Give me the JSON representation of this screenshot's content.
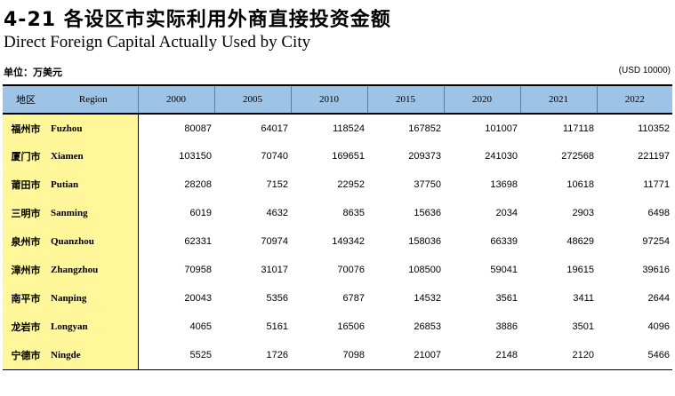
{
  "header": {
    "title_cn": "4-21 各设区市实际利用外商直接投资金额",
    "title_en": "Direct Foreign Capital Actually Used by City",
    "unit_cn": "单位：万美元",
    "unit_en": "(USD 10000)"
  },
  "table": {
    "col_region_cn": "地区",
    "col_region_en": "Region",
    "years": [
      "2000",
      "2005",
      "2010",
      "2015",
      "2020",
      "2021",
      "2022"
    ],
    "rows": [
      {
        "cn": "福州市",
        "en": "Fuzhou",
        "values": [
          "80087",
          "64017",
          "118524",
          "167852",
          "101007",
          "117118",
          "110352"
        ]
      },
      {
        "cn": "厦门市",
        "en": "Xiamen",
        "values": [
          "103150",
          "70740",
          "169651",
          "209373",
          "241030",
          "272568",
          "221197"
        ]
      },
      {
        "cn": "莆田市",
        "en": "Putian",
        "values": [
          "28208",
          "7152",
          "22952",
          "37750",
          "13698",
          "10618",
          "11771"
        ]
      },
      {
        "cn": "三明市",
        "en": "Sanming",
        "values": [
          "6019",
          "4632",
          "8635",
          "15636",
          "2034",
          "2903",
          "6498"
        ]
      },
      {
        "cn": "泉州市",
        "en": "Quanzhou",
        "values": [
          "62331",
          "70974",
          "149342",
          "158036",
          "66339",
          "48629",
          "97254"
        ]
      },
      {
        "cn": "漳州市",
        "en": "Zhangzhou",
        "values": [
          "70958",
          "31017",
          "70076",
          "108500",
          "59041",
          "19615",
          "39616"
        ]
      },
      {
        "cn": "南平市",
        "en": "Nanping",
        "values": [
          "20043",
          "5356",
          "6787",
          "14532",
          "3561",
          "3411",
          "2644"
        ]
      },
      {
        "cn": "龙岩市",
        "en": "Longyan",
        "values": [
          "4065",
          "5161",
          "16506",
          "26853",
          "3886",
          "3501",
          "4096"
        ]
      },
      {
        "cn": "宁德市",
        "en": "Ningde",
        "values": [
          "5525",
          "1726",
          "7098",
          "21007",
          "2148",
          "2120",
          "5466"
        ]
      }
    ]
  }
}
